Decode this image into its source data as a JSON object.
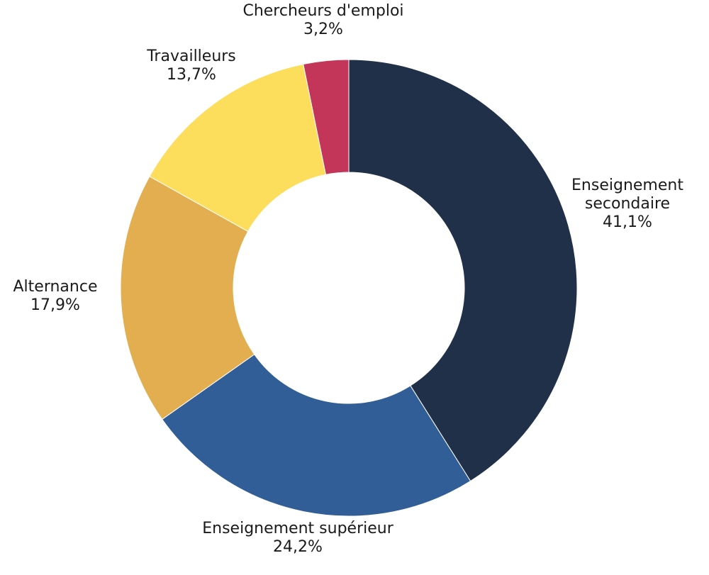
{
  "chart_data": {
    "type": "pie",
    "donut": true,
    "title": "",
    "start_angle_deg": 0,
    "direction": "clockwise",
    "slices": [
      {
        "name": "Enseignement secondaire",
        "label_lines": [
          "Enseignement",
          "secondaire"
        ],
        "value": 41.1,
        "value_label": "41,1%",
        "color": "#213049"
      },
      {
        "name": "Enseignement supérieur",
        "label_lines": [
          "Enseignement supérieur"
        ],
        "value": 24.2,
        "value_label": "24,2%",
        "color": "#325E97"
      },
      {
        "name": "Alternance",
        "label_lines": [
          "Alternance"
        ],
        "value": 17.9,
        "value_label": "17,9%",
        "color": "#E3AE4F"
      },
      {
        "name": "Travailleurs",
        "label_lines": [
          "Travailleurs"
        ],
        "value": 13.7,
        "value_label": "13,7%",
        "color": "#FDDD5C"
      },
      {
        "name": "Chercheurs d'emploi",
        "label_lines": [
          "Chercheurs d'emploi"
        ],
        "value": 3.2,
        "value_label": "3,2%",
        "color": "#C4355A"
      }
    ]
  }
}
